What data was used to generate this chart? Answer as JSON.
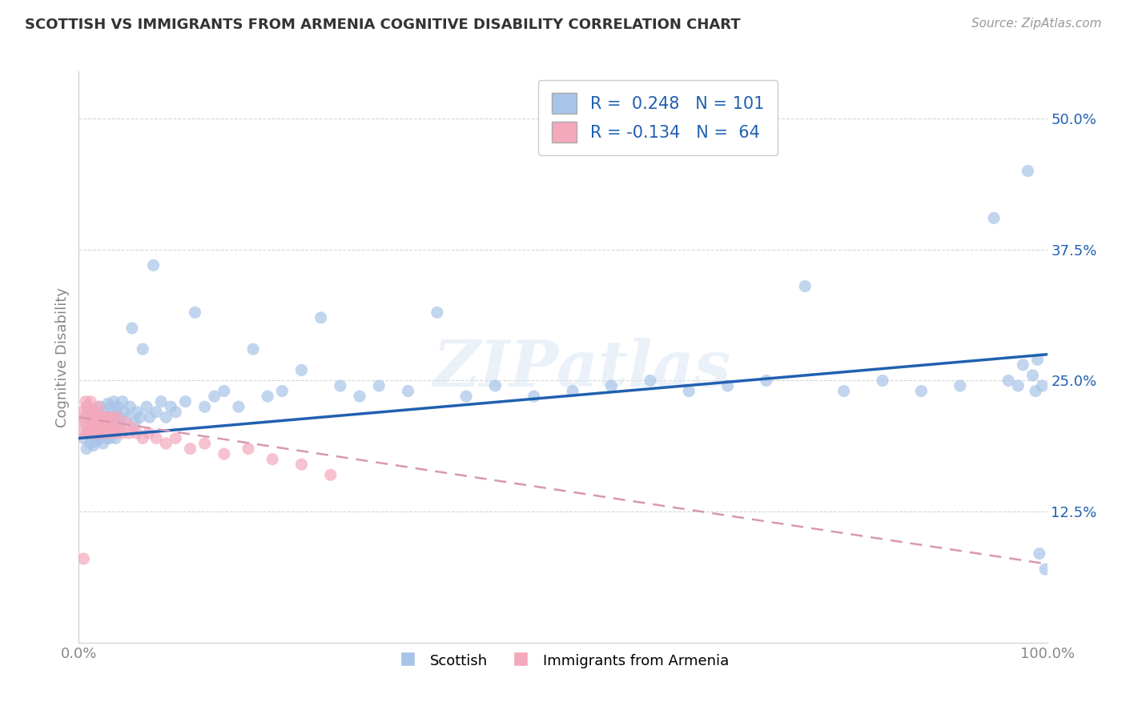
{
  "title": "SCOTTISH VS IMMIGRANTS FROM ARMENIA COGNITIVE DISABILITY CORRELATION CHART",
  "source": "Source: ZipAtlas.com",
  "ylabel": "Cognitive Disability",
  "xlim": [
    0.0,
    1.0
  ],
  "ylim": [
    0.0,
    0.545
  ],
  "ytick_labels": [
    "12.5%",
    "25.0%",
    "37.5%",
    "50.0%"
  ],
  "ytick_vals": [
    0.125,
    0.25,
    0.375,
    0.5
  ],
  "blue_R": 0.248,
  "blue_N": 101,
  "pink_R": -0.134,
  "pink_N": 64,
  "blue_color": "#a8c4e8",
  "pink_color": "#f4a8bc",
  "blue_line_color": "#2060b0",
  "pink_line_color": "#d898b0",
  "watermark": "ZIPatlas",
  "background_color": "#ffffff",
  "blue_scatter_x": [
    0.005,
    0.007,
    0.008,
    0.01,
    0.01,
    0.012,
    0.013,
    0.013,
    0.015,
    0.015,
    0.015,
    0.016,
    0.017,
    0.018,
    0.018,
    0.019,
    0.02,
    0.02,
    0.021,
    0.022,
    0.022,
    0.023,
    0.024,
    0.025,
    0.025,
    0.026,
    0.027,
    0.028,
    0.029,
    0.03,
    0.03,
    0.031,
    0.032,
    0.033,
    0.034,
    0.035,
    0.036,
    0.037,
    0.038,
    0.039,
    0.04,
    0.041,
    0.043,
    0.045,
    0.047,
    0.05,
    0.053,
    0.055,
    0.058,
    0.06,
    0.063,
    0.066,
    0.07,
    0.073,
    0.077,
    0.08,
    0.085,
    0.09,
    0.095,
    0.1,
    0.11,
    0.12,
    0.13,
    0.14,
    0.15,
    0.165,
    0.18,
    0.195,
    0.21,
    0.23,
    0.25,
    0.27,
    0.29,
    0.31,
    0.34,
    0.37,
    0.4,
    0.43,
    0.47,
    0.51,
    0.55,
    0.59,
    0.63,
    0.67,
    0.71,
    0.75,
    0.79,
    0.83,
    0.87,
    0.91,
    0.945,
    0.96,
    0.97,
    0.975,
    0.98,
    0.985,
    0.988,
    0.99,
    0.992,
    0.995,
    0.998
  ],
  "blue_scatter_y": [
    0.195,
    0.21,
    0.185,
    0.2,
    0.22,
    0.19,
    0.215,
    0.205,
    0.198,
    0.222,
    0.188,
    0.208,
    0.195,
    0.218,
    0.192,
    0.205,
    0.2,
    0.215,
    0.195,
    0.21,
    0.225,
    0.198,
    0.205,
    0.215,
    0.19,
    0.22,
    0.205,
    0.195,
    0.215,
    0.2,
    0.228,
    0.21,
    0.195,
    0.225,
    0.215,
    0.2,
    0.23,
    0.21,
    0.195,
    0.22,
    0.225,
    0.215,
    0.21,
    0.23,
    0.22,
    0.215,
    0.225,
    0.3,
    0.21,
    0.22,
    0.215,
    0.28,
    0.225,
    0.215,
    0.36,
    0.22,
    0.23,
    0.215,
    0.225,
    0.22,
    0.23,
    0.315,
    0.225,
    0.235,
    0.24,
    0.225,
    0.28,
    0.235,
    0.24,
    0.26,
    0.31,
    0.245,
    0.235,
    0.245,
    0.24,
    0.315,
    0.235,
    0.245,
    0.235,
    0.24,
    0.245,
    0.25,
    0.24,
    0.245,
    0.25,
    0.34,
    0.24,
    0.25,
    0.24,
    0.245,
    0.405,
    0.25,
    0.245,
    0.265,
    0.45,
    0.255,
    0.24,
    0.27,
    0.085,
    0.245,
    0.07
  ],
  "pink_scatter_x": [
    0.003,
    0.004,
    0.005,
    0.006,
    0.007,
    0.008,
    0.008,
    0.009,
    0.01,
    0.01,
    0.011,
    0.012,
    0.012,
    0.013,
    0.013,
    0.014,
    0.015,
    0.015,
    0.016,
    0.016,
    0.017,
    0.017,
    0.018,
    0.018,
    0.019,
    0.02,
    0.02,
    0.021,
    0.022,
    0.022,
    0.023,
    0.024,
    0.025,
    0.026,
    0.027,
    0.028,
    0.029,
    0.03,
    0.031,
    0.032,
    0.033,
    0.034,
    0.036,
    0.038,
    0.04,
    0.042,
    0.045,
    0.048,
    0.052,
    0.056,
    0.06,
    0.066,
    0.072,
    0.08,
    0.09,
    0.1,
    0.115,
    0.13,
    0.15,
    0.175,
    0.2,
    0.23,
    0.26,
    0.005
  ],
  "pink_scatter_y": [
    0.2,
    0.22,
    0.21,
    0.215,
    0.23,
    0.2,
    0.225,
    0.215,
    0.21,
    0.225,
    0.2,
    0.215,
    0.23,
    0.21,
    0.2,
    0.22,
    0.215,
    0.2,
    0.22,
    0.205,
    0.215,
    0.2,
    0.22,
    0.21,
    0.215,
    0.2,
    0.225,
    0.21,
    0.215,
    0.205,
    0.2,
    0.215,
    0.21,
    0.205,
    0.215,
    0.2,
    0.21,
    0.215,
    0.205,
    0.21,
    0.2,
    0.215,
    0.205,
    0.2,
    0.215,
    0.205,
    0.2,
    0.21,
    0.2,
    0.205,
    0.2,
    0.195,
    0.2,
    0.195,
    0.19,
    0.195,
    0.185,
    0.19,
    0.18,
    0.185,
    0.175,
    0.17,
    0.16,
    0.08
  ]
}
